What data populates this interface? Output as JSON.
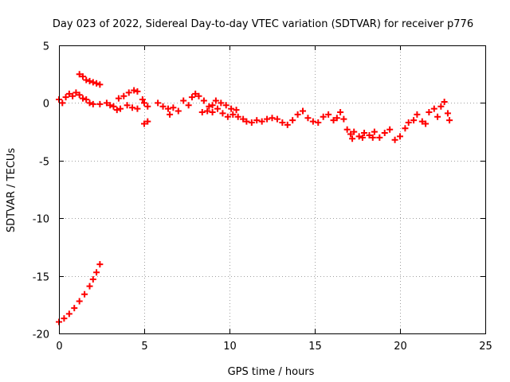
{
  "chart_data": {
    "type": "scatter",
    "title": "Day 023 of 2022, Sidereal Day-to-day VTEC variation (SDTVAR) for receiver p776",
    "xlabel": "GPS time / hours",
    "ylabel": "SDTVAR / TECUs",
    "xlim": [
      0,
      25
    ],
    "ylim": [
      -20,
      5
    ],
    "xticks": [
      0,
      5,
      10,
      15,
      20,
      25
    ],
    "yticks": [
      -20,
      -15,
      -10,
      -5,
      0,
      5
    ],
    "xtick_labels": [
      "0",
      "5",
      "10",
      "15",
      "20",
      "25"
    ],
    "ytick_labels": [
      "-20",
      "-15",
      "-10",
      "-5",
      "0",
      "5"
    ],
    "grid": true,
    "marker": "plus",
    "series_color": "#ff0000",
    "series": [
      {
        "name": "SDTVAR",
        "points": [
          [
            0.0,
            -19.0
          ],
          [
            0.3,
            -18.7
          ],
          [
            0.6,
            -18.3
          ],
          [
            0.9,
            -17.8
          ],
          [
            1.2,
            -17.2
          ],
          [
            1.5,
            -16.6
          ],
          [
            1.8,
            -15.9
          ],
          [
            2.0,
            -15.3
          ],
          [
            2.2,
            -14.7
          ],
          [
            2.4,
            -14.0
          ],
          [
            0.0,
            0.3
          ],
          [
            0.2,
            0.0
          ],
          [
            0.4,
            0.5
          ],
          [
            0.6,
            0.8
          ],
          [
            0.8,
            0.6
          ],
          [
            1.0,
            0.9
          ],
          [
            1.2,
            0.7
          ],
          [
            1.4,
            0.4
          ],
          [
            1.2,
            2.5
          ],
          [
            1.4,
            2.3
          ],
          [
            1.6,
            2.0
          ],
          [
            1.8,
            1.9
          ],
          [
            2.0,
            1.8
          ],
          [
            2.2,
            1.7
          ],
          [
            2.4,
            1.6
          ],
          [
            1.6,
            0.3
          ],
          [
            1.8,
            0.0
          ],
          [
            2.0,
            -0.1
          ],
          [
            2.4,
            -0.1
          ],
          [
            2.8,
            0.0
          ],
          [
            3.0,
            -0.2
          ],
          [
            3.2,
            -0.3
          ],
          [
            3.4,
            -0.6
          ],
          [
            3.6,
            -0.5
          ],
          [
            3.5,
            0.4
          ],
          [
            3.8,
            0.6
          ],
          [
            4.1,
            0.9
          ],
          [
            4.4,
            1.1
          ],
          [
            4.6,
            1.0
          ],
          [
            4.9,
            0.3
          ],
          [
            5.0,
            0.0
          ],
          [
            5.2,
            -0.3
          ],
          [
            4.0,
            -0.2
          ],
          [
            4.3,
            -0.4
          ],
          [
            4.6,
            -0.5
          ],
          [
            5.0,
            -1.8
          ],
          [
            5.2,
            -1.6
          ],
          [
            5.8,
            0.0
          ],
          [
            6.1,
            -0.3
          ],
          [
            6.4,
            -0.5
          ],
          [
            6.7,
            -0.4
          ],
          [
            7.0,
            -0.7
          ],
          [
            6.5,
            -1.0
          ],
          [
            7.3,
            0.2
          ],
          [
            7.6,
            -0.2
          ],
          [
            7.8,
            0.5
          ],
          [
            8.0,
            0.8
          ],
          [
            8.2,
            0.6
          ],
          [
            8.5,
            0.2
          ],
          [
            8.8,
            -0.3
          ],
          [
            9.0,
            -0.2
          ],
          [
            9.2,
            0.2
          ],
          [
            8.4,
            -0.8
          ],
          [
            8.7,
            -0.7
          ],
          [
            9.0,
            -0.8
          ],
          [
            9.3,
            -0.5
          ],
          [
            9.6,
            -0.9
          ],
          [
            9.9,
            -1.2
          ],
          [
            10.2,
            -1.0
          ],
          [
            10.5,
            -1.2
          ],
          [
            10.8,
            -1.4
          ],
          [
            9.5,
            0.0
          ],
          [
            9.8,
            -0.2
          ],
          [
            10.1,
            -0.5
          ],
          [
            10.4,
            -0.6
          ],
          [
            11.0,
            -1.6
          ],
          [
            11.3,
            -1.7
          ],
          [
            11.6,
            -1.5
          ],
          [
            11.9,
            -1.6
          ],
          [
            12.2,
            -1.4
          ],
          [
            12.5,
            -1.3
          ],
          [
            12.8,
            -1.4
          ],
          [
            13.1,
            -1.7
          ],
          [
            13.4,
            -1.9
          ],
          [
            13.7,
            -1.5
          ],
          [
            14.0,
            -1.0
          ],
          [
            14.3,
            -0.7
          ],
          [
            14.6,
            -1.3
          ],
          [
            14.9,
            -1.6
          ],
          [
            15.2,
            -1.7
          ],
          [
            15.5,
            -1.2
          ],
          [
            15.8,
            -1.0
          ],
          [
            16.1,
            -1.5
          ],
          [
            16.3,
            -1.3
          ],
          [
            16.5,
            -0.8
          ],
          [
            16.7,
            -1.4
          ],
          [
            16.9,
            -2.3
          ],
          [
            17.1,
            -2.7
          ],
          [
            17.3,
            -2.5
          ],
          [
            17.6,
            -2.9
          ],
          [
            17.9,
            -2.6
          ],
          [
            18.2,
            -2.8
          ],
          [
            18.5,
            -2.5
          ],
          [
            18.8,
            -3.0
          ],
          [
            19.1,
            -2.6
          ],
          [
            17.2,
            -3.1
          ],
          [
            17.8,
            -3.0
          ],
          [
            18.4,
            -3.0
          ],
          [
            19.4,
            -2.3
          ],
          [
            19.7,
            -3.2
          ],
          [
            20.0,
            -2.9
          ],
          [
            20.3,
            -2.2
          ],
          [
            20.5,
            -1.7
          ],
          [
            20.8,
            -1.5
          ],
          [
            21.0,
            -1.0
          ],
          [
            21.3,
            -1.6
          ],
          [
            21.5,
            -1.8
          ],
          [
            21.7,
            -0.8
          ],
          [
            22.0,
            -0.5
          ],
          [
            22.2,
            -1.2
          ],
          [
            22.4,
            -0.3
          ],
          [
            22.6,
            0.1
          ],
          [
            22.8,
            -0.9
          ],
          [
            22.9,
            -1.5
          ]
        ]
      }
    ]
  }
}
